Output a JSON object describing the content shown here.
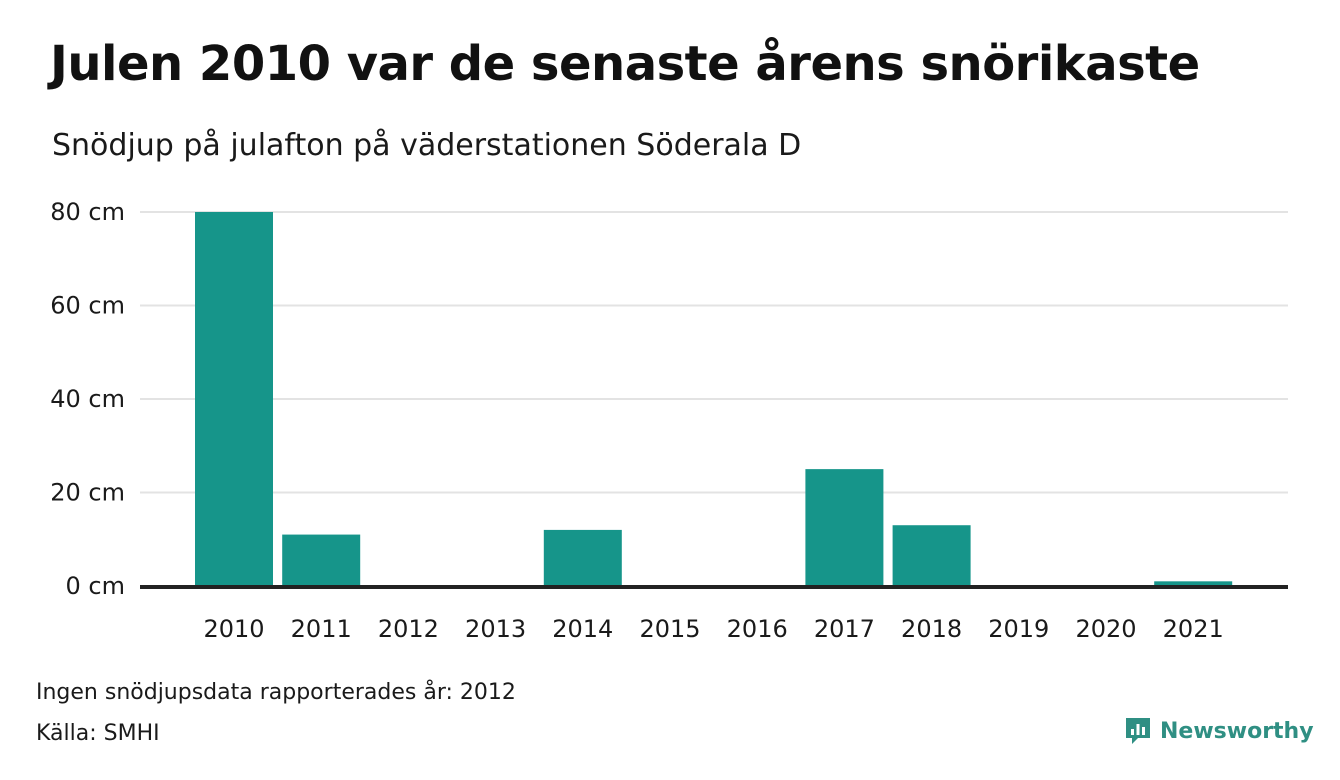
{
  "title": "Julen 2010 var de senaste årens snörikaste",
  "subtitle": "Snödjup på julafton på väderstationen Söderala D",
  "note": "Ingen snödjupsdata rapporterades år: 2012",
  "source": "Källa: SMHI",
  "logo": {
    "name": "Newsworthy",
    "icon": "newsworthy-chart-logo-icon"
  },
  "colors": {
    "bar": "#16958a",
    "grid": "#e3e3e3",
    "axis": "#222222",
    "logo": "#2f8f83"
  },
  "chart_data": {
    "type": "bar",
    "categories": [
      "2010",
      "2011",
      "2012",
      "2013",
      "2014",
      "2015",
      "2016",
      "2017",
      "2018",
      "2019",
      "2020",
      "2021"
    ],
    "values": [
      80,
      11,
      null,
      0,
      12,
      0,
      0,
      25,
      13,
      0,
      0,
      1
    ],
    "ylim": [
      0,
      80
    ],
    "yticks": [
      0,
      20,
      40,
      60,
      80
    ],
    "ytick_labels": [
      "0 cm",
      "20 cm",
      "40 cm",
      "60 cm",
      "80 cm"
    ],
    "xlabel": "",
    "ylabel": "",
    "grid": true,
    "legend": "none"
  }
}
